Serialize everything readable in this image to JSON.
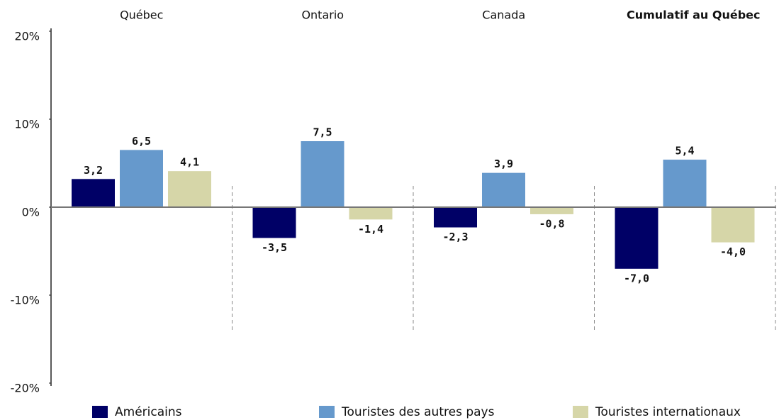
{
  "chart_data": {
    "type": "bar",
    "categories": [
      "Québec",
      "Ontario",
      "Canada",
      "Cumulatif au Québec"
    ],
    "series": [
      {
        "name": "Américains",
        "color": "#000066",
        "values": [
          3.2,
          -3.5,
          -2.3,
          -7.0
        ],
        "value_labels": [
          "3,2",
          "-3,5",
          "-2,3",
          "-7,0"
        ]
      },
      {
        "name": "Touristes des autres pays",
        "color": "#6699cc",
        "values": [
          6.5,
          7.5,
          3.9,
          5.4
        ],
        "value_labels": [
          "6,5",
          "7,5",
          "3,9",
          "5,4"
        ]
      },
      {
        "name": "Touristes internationaux",
        "color": "#d6d6a8",
        "values": [
          4.1,
          -1.4,
          -0.8,
          -4.0
        ],
        "value_labels": [
          "4,1",
          "-1,4",
          "-0,8",
          "-4,0"
        ]
      }
    ],
    "ylim": [
      -20,
      20
    ],
    "yticks": [
      {
        "value": 20,
        "label": "20%"
      },
      {
        "value": 10,
        "label": "10%"
      },
      {
        "value": 0,
        "label": "0%"
      },
      {
        "value": -10,
        "label": "-10%"
      },
      {
        "value": -20,
        "label": "-20%"
      }
    ]
  }
}
